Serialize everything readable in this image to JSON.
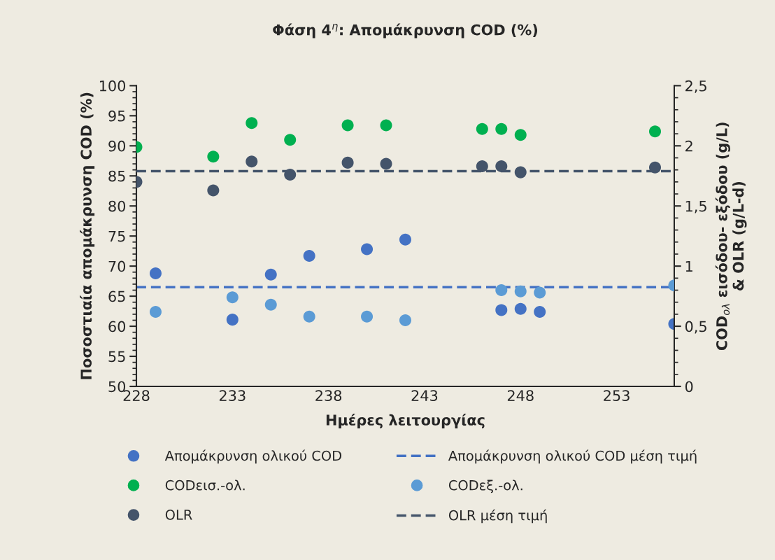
{
  "chart_data": {
    "type": "scatter",
    "title": "Φάση 4$^{η}$: Απομάκρυνση COD (%)",
    "xlabel": "Ημέρες λειτουργίας",
    "ylabel": "Ποσοστιαία απομάκρυνση COD (%)",
    "y2label": "COD$_{ολ}$ εισόδου- εξόδου (g/L)\n& OLR (g/L-d)",
    "xlim": [
      228,
      256
    ],
    "xticks": [
      228,
      233,
      238,
      243,
      248,
      253
    ],
    "ylim": [
      50,
      100
    ],
    "yticks": [
      50,
      55,
      60,
      65,
      70,
      75,
      80,
      85,
      90,
      95,
      100
    ],
    "y2lim": [
      0,
      2.5
    ],
    "y2ticks": [
      0,
      {
        "value": 0.5,
        "label": "0,5"
      },
      1,
      {
        "value": 1.5,
        "label": "1,5"
      },
      2,
      {
        "value": 2.5,
        "label": "2,5"
      }
    ],
    "marker": "circle",
    "grid": false,
    "legend": "bottom",
    "series": [
      {
        "name": "Απομάκρυνση ολικού COD",
        "color": "#4472c4",
        "x": [
          229,
          233,
          235,
          237,
          240,
          242,
          247,
          248,
          249,
          256
        ],
        "values": [
          68.8,
          61.1,
          68.6,
          71.7,
          72.8,
          74.4,
          62.7,
          62.9,
          62.4,
          60.4
        ]
      },
      {
        "name": "CODεισ.-ολ.",
        "color": "#00b050",
        "axis": "y2",
        "x": [
          228,
          232,
          234,
          236,
          239,
          241,
          246,
          247,
          248,
          255
        ],
        "values": [
          1.99,
          1.91,
          2.19,
          2.05,
          2.17,
          2.17,
          2.14,
          2.14,
          2.09,
          2.12
        ]
      },
      {
        "name": "CODεξ.-ολ.",
        "color": "#5b9bd5",
        "axis": "y2",
        "x": [
          229,
          233,
          235,
          237,
          240,
          242,
          247,
          248,
          249,
          256
        ],
        "values": [
          0.62,
          0.74,
          0.68,
          0.58,
          0.58,
          0.55,
          0.8,
          0.79,
          0.78,
          0.84
        ]
      },
      {
        "name": "OLR",
        "color": "#44546a",
        "axis": "y2",
        "x": [
          228,
          232,
          234,
          236,
          239,
          241,
          246,
          247,
          248,
          255
        ],
        "values": [
          1.7,
          1.63,
          1.87,
          1.76,
          1.86,
          1.85,
          1.83,
          1.83,
          1.78,
          1.82
        ]
      }
    ],
    "ref_lines": [
      {
        "axis": "y",
        "value": 66.5,
        "label": "Απομάκρυνση ολικού COD μέση τιμή",
        "color": "#4472c4",
        "line_style": "dashed"
      },
      {
        "axis": "y2",
        "value": 1.79,
        "label": "OLR μέση τιμή",
        "color": "#44546a",
        "line_style": "dashed"
      }
    ]
  }
}
